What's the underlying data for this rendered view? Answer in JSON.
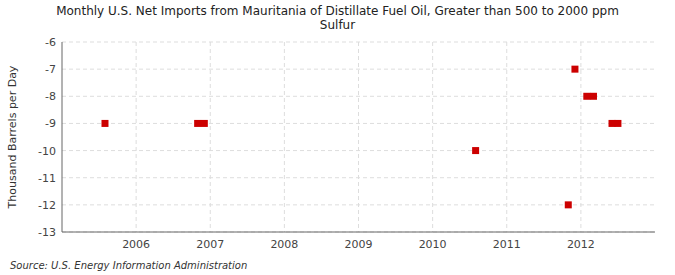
{
  "chart_data": {
    "type": "scatter",
    "title": "Monthly U.S. Net Imports from Mauritania of Distillate Fuel Oil, Greater than 500 to 2000 ppm\nSulfur",
    "ylabel": "Thousand Barrels per Day",
    "source": "Source: U.S. Energy Information Administration",
    "x": [
      2005.58,
      2006.83,
      2006.92,
      2010.58,
      2011.83,
      2011.92,
      2012.08,
      2012.17,
      2012.42,
      2012.5
    ],
    "values": [
      -9,
      -9,
      -9,
      -10,
      -12,
      -7,
      -8,
      -8,
      -9,
      -9
    ],
    "color": "#cc0000",
    "marker": "square",
    "xlim": [
      2005.0,
      2013.0
    ],
    "xticks": [
      2006,
      2007,
      2008,
      2009,
      2010,
      2011,
      2012
    ],
    "ylim": [
      -13,
      -6
    ],
    "yticks": [
      -13,
      -12,
      -11,
      -10,
      -9,
      -8,
      -7,
      -6
    ],
    "grid": true
  }
}
